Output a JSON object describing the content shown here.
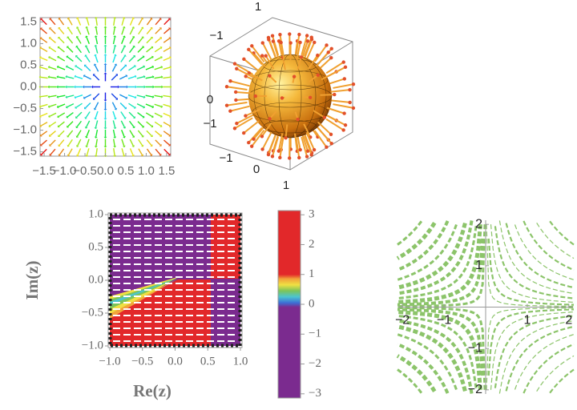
{
  "chart_data": [
    {
      "type": "vector",
      "xlim": [
        -1.6,
        1.6
      ],
      "ylim": [
        -1.6,
        1.6
      ],
      "xticks": [
        {
          "value": -1.5,
          "label": "−1.5"
        },
        {
          "value": -1,
          "label": "−1.0"
        },
        {
          "value": -0.5,
          "label": "−0.5"
        },
        {
          "value": 0,
          "label": "0.0"
        },
        {
          "value": 0.5,
          "label": "0.5"
        },
        {
          "value": 1,
          "label": "1.0"
        },
        {
          "value": 1.5,
          "label": "1.5"
        }
      ],
      "yticks": [
        {
          "value": -1.5,
          "label": "−1.5"
        },
        {
          "value": -1,
          "label": "−1.0"
        },
        {
          "value": -0.5,
          "label": "−0.5"
        },
        {
          "value": 0,
          "label": "0.0"
        },
        {
          "value": 0.5,
          "label": "0.5"
        },
        {
          "value": 1,
          "label": "1.0"
        },
        {
          "value": 1.5,
          "label": "1.5"
        }
      ]
    },
    {
      "type": "vector3d",
      "tick_labels": [
        "1",
        "−1",
        "0",
        "−1",
        "−1",
        "0",
        "1"
      ]
    },
    {
      "type": "density",
      "xlim": [
        -1,
        1
      ],
      "ylim": [
        -1,
        1
      ],
      "xticks": [
        {
          "value": -1,
          "label": "−1.0"
        },
        {
          "value": -0.5,
          "label": "−0.5"
        },
        {
          "value": 0,
          "label": "0.0"
        },
        {
          "value": 0.5,
          "label": "0.5"
        },
        {
          "value": 1,
          "label": "1.0"
        }
      ],
      "yticks": [
        {
          "value": -1,
          "label": "−1.0"
        },
        {
          "value": -0.5,
          "label": "−0.5"
        },
        {
          "value": 0,
          "label": "0.0"
        },
        {
          "value": 0.5,
          "label": "0.5"
        },
        {
          "value": 1,
          "label": "1.0"
        }
      ],
      "xlabel": "Re(z)",
      "ylabel": "Im(z)",
      "colorbar": {
        "lim": [
          -3.14,
          3.14
        ],
        "ticks": [
          {
            "value": -3,
            "label": "−3"
          },
          {
            "value": -2,
            "label": "−2"
          },
          {
            "value": -1,
            "label": "−1"
          },
          0,
          1,
          2,
          3
        ],
        "colorscale": [
          [
            -3.14,
            "#7b2b8f"
          ],
          [
            -0.1,
            "#7b2b8f"
          ],
          [
            0.05,
            "#3c6fd6"
          ],
          [
            0.25,
            "#4cc4d0"
          ],
          [
            0.45,
            "#7cc45a"
          ],
          [
            0.65,
            "#efe043"
          ],
          [
            0.85,
            "#f2a33a"
          ],
          [
            1.0,
            "#e2282a"
          ],
          [
            3.14,
            "#e2282a"
          ]
        ]
      }
    },
    {
      "type": "stream",
      "xlim": [
        -2.1,
        2.1
      ],
      "ylim": [
        -2.1,
        2.1
      ],
      "xticks": [
        {
          "value": -2,
          "label": "−2"
        },
        {
          "value": -1,
          "label": "−1"
        },
        1,
        2
      ],
      "yticks": [
        {
          "value": -2,
          "label": "−2"
        },
        {
          "value": -1,
          "label": "−1"
        },
        1,
        2
      ],
      "color": "#8cc46a"
    }
  ]
}
